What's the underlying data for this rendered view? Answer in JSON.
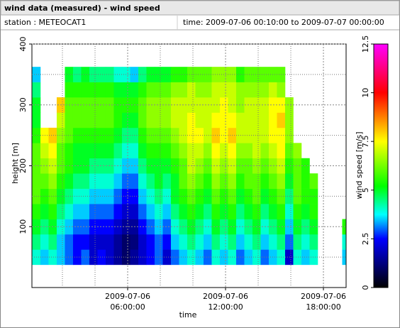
{
  "chart_data": {
    "type": "heatmap",
    "title": "wind data (measured) - wind speed",
    "station": "station : METEOCAT1",
    "period": "time: 2009-07-06 00:10:00 to 2009-07-07 00:00:00",
    "xlabel": "time",
    "ylabel": "height [m]",
    "zlabel": "wind speed [m/s]",
    "xlim": [
      0.13,
      19.39
    ],
    "xticks": [
      {
        "value": 6,
        "label": "2009-07-06 06:00:00"
      },
      {
        "value": 12,
        "label": "2009-07-06 12:00:00"
      },
      {
        "value": 18,
        "label": "2009-07-06 18:00:00"
      }
    ],
    "xminor": [
      2,
      4,
      8,
      10,
      14,
      16
    ],
    "ylim": [
      0,
      400
    ],
    "yticks": [
      100,
      200,
      300,
      400
    ],
    "yminor": [
      50,
      150,
      250,
      350
    ],
    "zlim": [
      0,
      12.5
    ],
    "zticks": [
      0,
      2.5,
      5,
      7.5,
      10,
      12.5
    ],
    "colormap": [
      {
        "value": 0,
        "color": "#000000"
      },
      {
        "value": 1.25,
        "color": "#000080"
      },
      {
        "value": 2.5,
        "color": "#0000ff"
      },
      {
        "value": 3.75,
        "color": "#00ffff"
      },
      {
        "value": 5.2,
        "color": "#00ff00"
      },
      {
        "value": 7.5,
        "color": "#ffff00"
      },
      {
        "value": 10,
        "color": "#ff0000"
      },
      {
        "value": 12.5,
        "color": "#ff00ff"
      }
    ],
    "cell_width": 0.5,
    "cell_height": 25,
    "x": [
      0.4,
      0.9,
      1.4,
      1.9,
      2.4,
      2.9,
      3.4,
      3.9,
      4.4,
      4.9,
      5.4,
      5.9,
      6.4,
      6.9,
      7.4,
      7.9,
      8.4,
      8.9,
      9.4,
      9.9,
      10.4,
      10.9,
      11.4,
      11.9,
      12.4,
      12.9,
      13.4,
      13.9,
      14.4,
      14.9,
      15.4,
      15.9,
      16.4,
      16.9,
      17.4,
      17.9,
      18.4,
      18.9,
      19.4
    ],
    "y": [
      50,
      75,
      100,
      125,
      150,
      175,
      200,
      225,
      250,
      275,
      300,
      325,
      350
    ],
    "z": [
      [
        4,
        3.5,
        4,
        3.5,
        3,
        2.5,
        3,
        2,
        2.5,
        2,
        1.5,
        1,
        1.5,
        2,
        2.5,
        3,
        2,
        3,
        3.5,
        4,
        3.5,
        3,
        4,
        3.5,
        4,
        3,
        3.5,
        4,
        3,
        3.5,
        4,
        2,
        4,
        3.5,
        4,
        null,
        null,
        null,
        3.5
      ],
      [
        4.5,
        4,
        4.5,
        3.5,
        3,
        2.5,
        2.5,
        2,
        2,
        2,
        1.5,
        1,
        1.2,
        2,
        2.5,
        3,
        2.5,
        3.5,
        4,
        4.5,
        4,
        3.5,
        4.5,
        4,
        4.5,
        3.5,
        4,
        4.5,
        3.5,
        4,
        4.5,
        3,
        4.5,
        4,
        4.5,
        null,
        null,
        null,
        4
      ],
      [
        5,
        4.5,
        5,
        4,
        3.5,
        3,
        3,
        2.5,
        2.5,
        2.5,
        2,
        1.5,
        1.5,
        2.5,
        3,
        3.5,
        3,
        4,
        4.5,
        5,
        4.5,
        4,
        5,
        4.5,
        5,
        4,
        4.5,
        5,
        4,
        4.5,
        5,
        3.5,
        5,
        4.5,
        5,
        null,
        null,
        null,
        5.5
      ],
      [
        5.5,
        5,
        5.5,
        4.5,
        4,
        3.5,
        3.5,
        3,
        3,
        3,
        2.5,
        2,
        2,
        3,
        3.5,
        4,
        3.5,
        4.5,
        5,
        5.5,
        5,
        4.5,
        5.5,
        5,
        5.5,
        4.5,
        5,
        5.5,
        4.5,
        5,
        5.5,
        4,
        5.5,
        5,
        5.5,
        null,
        null,
        null,
        null
      ],
      [
        6,
        5.5,
        6,
        5,
        4.5,
        4,
        4,
        3.5,
        3.5,
        3.5,
        3,
        2.5,
        2.5,
        3.5,
        4,
        4.5,
        4,
        5,
        5.5,
        6,
        5.5,
        5,
        6,
        5.5,
        6,
        5,
        5.5,
        6,
        5,
        5.5,
        6,
        4.5,
        6,
        5.5,
        5.5,
        null,
        null,
        null,
        null
      ],
      [
        6,
        6,
        6.5,
        5.5,
        5,
        4.5,
        4.5,
        4,
        4,
        4,
        3.5,
        3,
        3,
        4,
        4.5,
        5,
        4.5,
        5,
        6,
        6.5,
        6,
        5.5,
        6.5,
        6,
        6.5,
        5.5,
        6,
        6,
        5.5,
        6,
        6.5,
        5,
        6,
        5.5,
        6,
        null,
        null,
        null,
        null
      ],
      [
        6,
        6.5,
        7,
        6,
        5.5,
        5,
        5,
        4.5,
        4.5,
        4.5,
        4,
        3.5,
        3.5,
        4.5,
        5,
        5,
        5,
        5.5,
        6,
        7,
        6.5,
        6,
        7,
        6.5,
        7,
        6,
        6,
        6.5,
        6,
        6.5,
        7,
        5.5,
        6,
        5.5,
        null,
        null,
        null,
        null,
        null
      ],
      [
        6,
        7,
        7.5,
        6,
        5.5,
        5,
        5,
        5,
        5,
        5,
        4.5,
        4,
        4,
        5,
        5.5,
        5.5,
        5.5,
        6,
        6.5,
        7,
        7,
        6.5,
        7.5,
        7,
        7.5,
        6.5,
        6.5,
        7,
        6.5,
        7,
        7.5,
        6,
        6.5,
        null,
        null,
        null,
        null,
        null,
        null
      ],
      [
        5.5,
        7.5,
        8,
        6.5,
        6,
        5.5,
        5.5,
        5.5,
        5.5,
        5.5,
        5,
        4.5,
        4.5,
        5.5,
        6,
        6,
        6,
        6.5,
        7,
        7.5,
        7.5,
        7,
        8,
        7.5,
        8,
        7,
        7,
        7,
        7,
        7.5,
        7.5,
        6.5,
        null,
        null,
        null,
        null,
        null,
        null,
        null
      ],
      [
        5,
        null,
        null,
        7,
        6,
        6,
        6,
        6,
        6,
        6,
        5.5,
        5,
        5,
        6,
        6.5,
        6.5,
        6.5,
        7,
        7,
        7.5,
        7,
        7,
        7.5,
        7.5,
        7.5,
        7,
        7,
        7,
        7,
        7.5,
        8,
        6.5,
        null,
        null,
        null,
        null,
        null,
        null,
        null
      ],
      [
        5,
        null,
        null,
        8,
        6,
        6,
        6,
        6,
        6,
        6,
        5.5,
        5.5,
        5.5,
        6,
        6.5,
        6.5,
        6.5,
        7,
        7,
        7,
        7,
        7,
        7,
        7.5,
        7,
        6.5,
        7,
        7,
        7,
        7.5,
        7.5,
        6.5,
        null,
        null,
        null,
        null,
        null,
        null,
        null
      ],
      [
        4.5,
        null,
        null,
        null,
        5.5,
        5.5,
        5.5,
        5.5,
        5.5,
        5.5,
        5,
        5,
        5,
        5.5,
        6,
        6,
        6,
        6.5,
        6.5,
        7,
        6.5,
        6.5,
        7,
        7,
        7,
        6.5,
        6.5,
        6.5,
        6.5,
        7,
        6.5,
        null,
        null,
        null,
        null,
        null,
        null,
        null,
        null
      ],
      [
        3.5,
        null,
        null,
        null,
        5,
        4.5,
        5,
        4.5,
        4.5,
        4.5,
        4,
        4,
        3.5,
        4.5,
        5,
        5,
        5,
        5.5,
        5.5,
        6,
        6,
        6,
        6.5,
        6.5,
        6.5,
        5.5,
        6,
        6,
        6,
        6,
        6,
        null,
        null,
        null,
        null,
        null,
        null,
        null,
        null
      ]
    ]
  }
}
